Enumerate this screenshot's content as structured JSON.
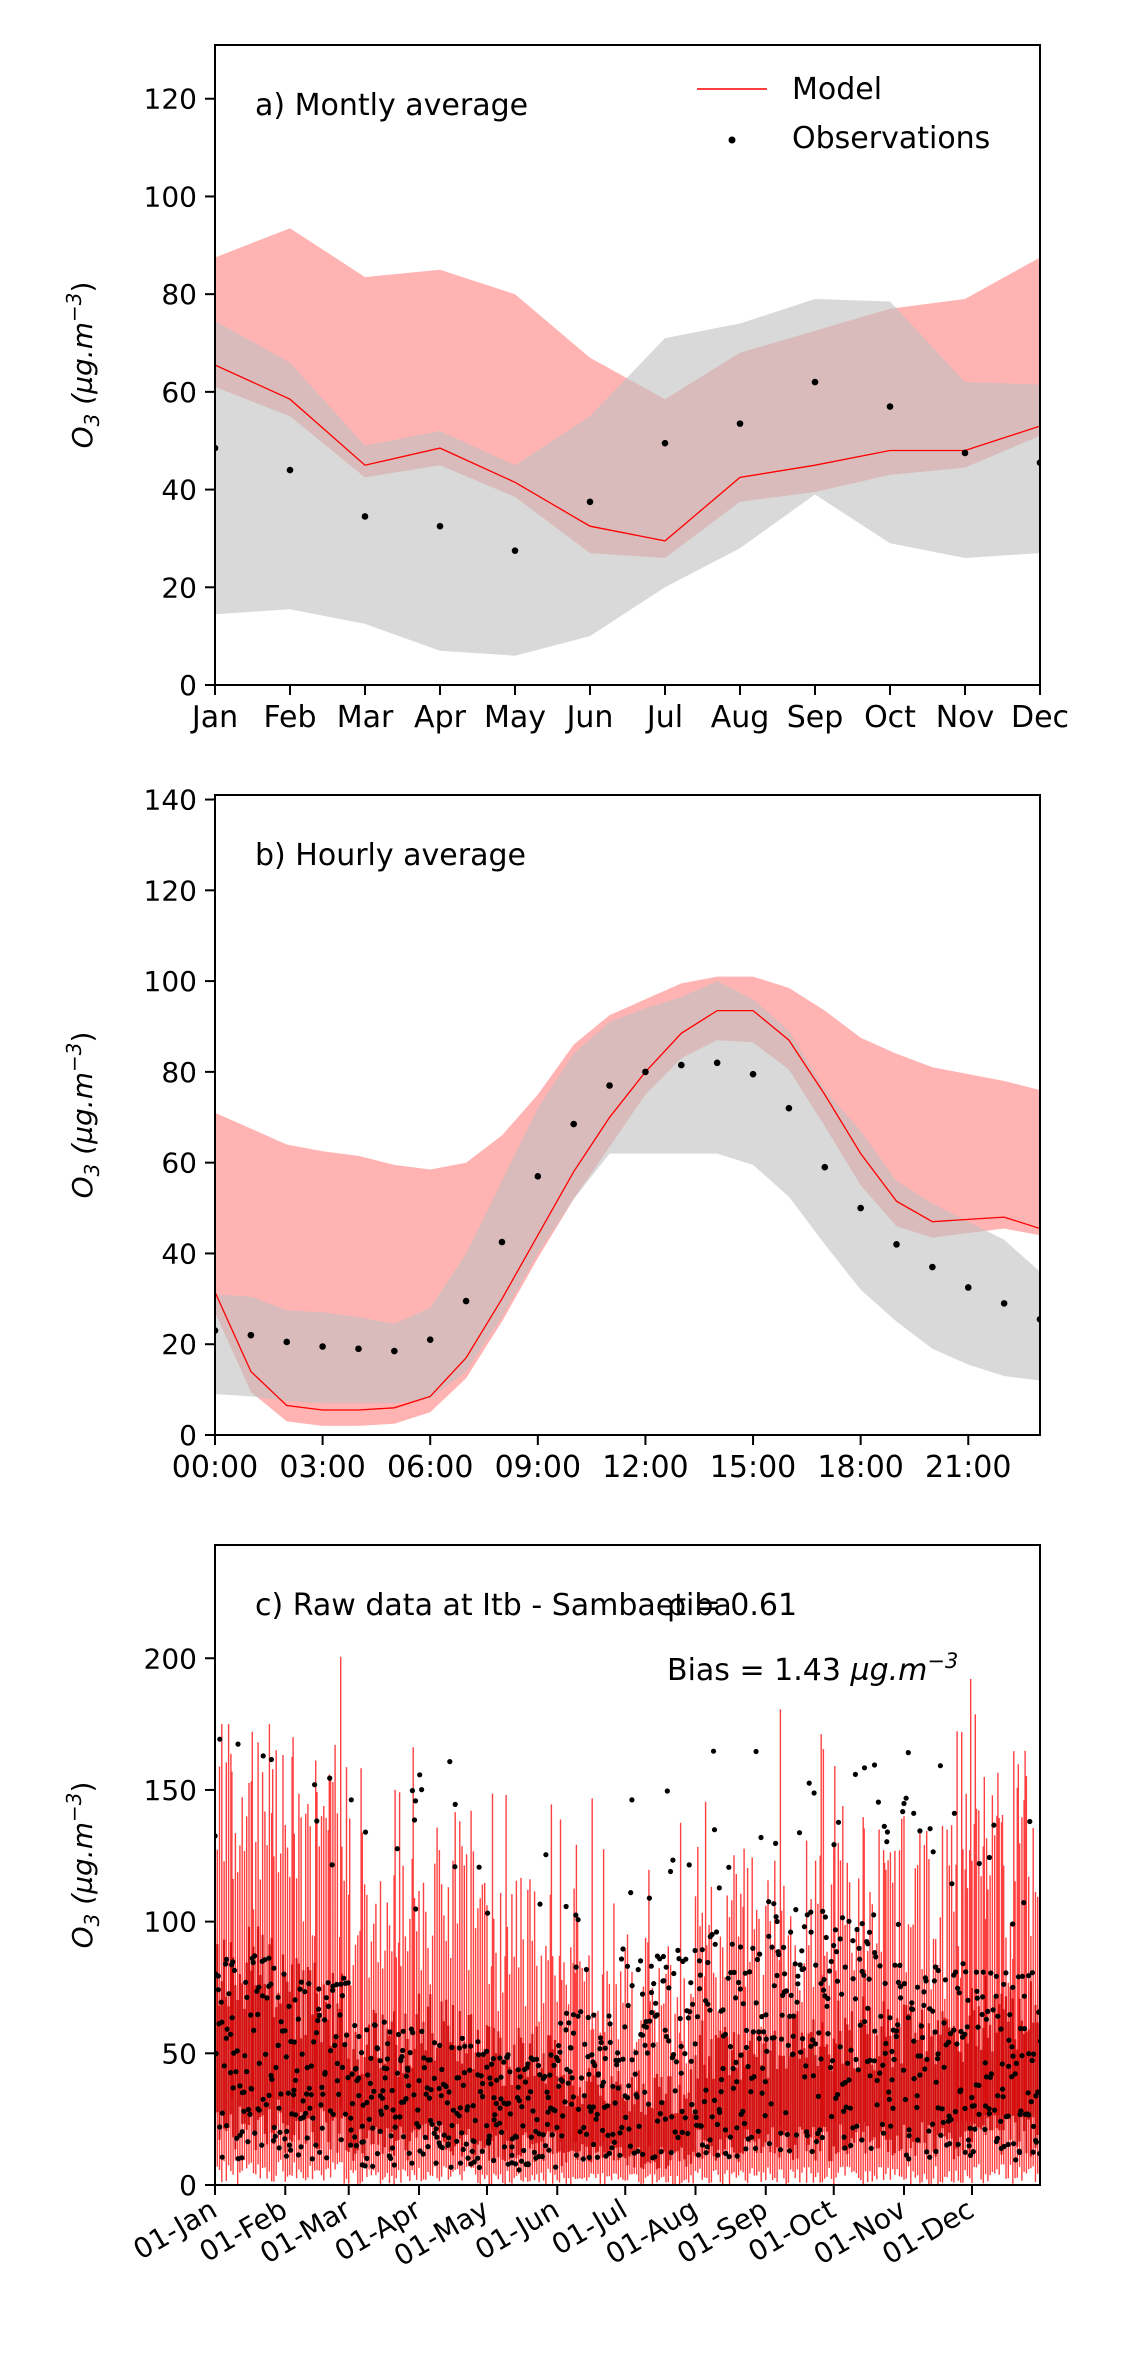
{
  "chart_data": [
    {
      "type": "line",
      "title": "a) Montly average",
      "ylabel_base": "O",
      "ylabel_sub": "3",
      "ylabel_unit": " (µg.m",
      "ylabel_sup": "−3",
      "ylabel_close": ")",
      "xlim": [
        0,
        11
      ],
      "ylim": [
        0,
        131
      ],
      "yticks": [
        0,
        20,
        40,
        60,
        80,
        100,
        120
      ],
      "xticks": [
        0,
        1,
        2,
        3,
        4,
        5,
        6,
        7,
        8,
        9,
        10,
        11
      ],
      "xtick_labels": [
        "Jan",
        "Feb",
        "Mar",
        "Apr",
        "May",
        "Jun",
        "Jul",
        "Aug",
        "Sep",
        "Oct",
        "Nov",
        "Dec"
      ],
      "legend": [
        "Model",
        "Observations"
      ],
      "legend_position": "top-right",
      "grid": false,
      "model_color": "#ff0000",
      "model_band_color": "#ff9999",
      "obs_band_color": "#bfbfbf",
      "x": [
        0,
        1,
        2,
        3,
        4,
        5,
        6,
        7,
        8,
        9,
        10,
        11
      ],
      "model_mean": [
        65.5,
        58.5,
        45.0,
        48.5,
        41.5,
        32.5,
        29.5,
        42.5,
        45.0,
        48.0,
        48.0,
        53.0
      ],
      "model_upper": [
        87.5,
        93.5,
        83.5,
        85.0,
        80.0,
        67.0,
        58.5,
        68.0,
        72.5,
        77.0,
        79.0,
        87.5
      ],
      "model_lower": [
        61.0,
        55.0,
        42.5,
        45.0,
        38.5,
        27.0,
        26.0,
        37.5,
        39.5,
        43.0,
        44.5,
        51.0
      ],
      "obs_mean": [
        48.5,
        44.0,
        34.5,
        32.5,
        27.5,
        37.5,
        49.5,
        53.5,
        62.0,
        57.0,
        47.5,
        45.5
      ],
      "obs_upper": [
        74.5,
        66.0,
        49.0,
        52.0,
        45.0,
        55.0,
        71.0,
        74.0,
        79.0,
        78.5,
        62.0,
        61.5
      ],
      "obs_lower": [
        14.5,
        15.5,
        12.5,
        7.0,
        6.0,
        10.0,
        20.0,
        28.0,
        39.0,
        29.0,
        26.0,
        27.0
      ]
    },
    {
      "type": "line",
      "title": "b) Hourly average",
      "ylabel_base": "O",
      "ylabel_sub": "3",
      "ylabel_unit": " (µg.m",
      "ylabel_sup": "−3",
      "ylabel_close": ")",
      "xlim": [
        0,
        23
      ],
      "ylim": [
        0,
        141
      ],
      "yticks": [
        0,
        20,
        40,
        60,
        80,
        100,
        120,
        140
      ],
      "xticks": [
        0,
        3,
        6,
        9,
        12,
        15,
        18,
        21
      ],
      "xtick_labels": [
        "00:00",
        "03:00",
        "06:00",
        "09:00",
        "12:00",
        "15:00",
        "18:00",
        "21:00"
      ],
      "grid": false,
      "x": [
        0,
        1,
        2,
        3,
        4,
        5,
        6,
        7,
        8,
        9,
        10,
        11,
        12,
        13,
        14,
        15,
        16,
        17,
        18,
        19,
        20,
        21,
        22,
        23
      ],
      "model_mean": [
        31.5,
        14.0,
        6.5,
        5.5,
        5.5,
        6.0,
        8.5,
        17.0,
        30.0,
        44.0,
        58.0,
        70.0,
        80.0,
        88.5,
        93.5,
        93.5,
        87.0,
        75.0,
        62.0,
        51.5,
        47.0,
        47.5,
        48.0,
        45.5
      ],
      "model_upper": [
        71.0,
        67.5,
        64.0,
        62.5,
        61.5,
        59.5,
        58.5,
        60.0,
        66.0,
        75.0,
        86.0,
        92.5,
        96.0,
        99.5,
        101.0,
        101.0,
        98.5,
        93.5,
        87.5,
        84.0,
        81.0,
        79.5,
        78.0,
        76.0
      ],
      "model_lower": [
        27.0,
        9.5,
        3.0,
        2.0,
        2.0,
        2.5,
        5.0,
        12.5,
        25.0,
        39.0,
        52.0,
        63.5,
        75.0,
        83.0,
        87.0,
        86.5,
        80.5,
        68.0,
        55.0,
        46.0,
        43.5,
        44.5,
        45.5,
        44.0
      ],
      "obs_mean": [
        23.0,
        22.0,
        20.5,
        19.5,
        19.0,
        18.5,
        21.0,
        29.5,
        42.5,
        57.0,
        68.5,
        77.0,
        80.0,
        81.5,
        82.0,
        79.5,
        72.0,
        59.0,
        50.0,
        42.0,
        37.0,
        32.5,
        29.0,
        25.5
      ],
      "obs_upper": [
        31.0,
        30.5,
        27.5,
        27.0,
        26.0,
        24.5,
        28.0,
        40.0,
        56.0,
        72.0,
        84.0,
        91.0,
        94.0,
        96.5,
        100.0,
        96.0,
        89.0,
        76.0,
        67.0,
        56.0,
        51.0,
        47.0,
        43.0,
        36.0
      ],
      "obs_lower": [
        9.0,
        8.5,
        7.5,
        7.0,
        7.0,
        7.0,
        8.0,
        14.0,
        26.0,
        40.0,
        52.0,
        62.0,
        62.0,
        62.0,
        62.0,
        59.5,
        52.5,
        42.0,
        32.0,
        25.0,
        19.0,
        15.5,
        13.0,
        12.0
      ]
    },
    {
      "type": "line",
      "title": "c) Raw data at Itb - Sambaetiba",
      "corr_label": "ρ = 0.61",
      "bias_label": "Bias = 1.43 ",
      "bias_unit": "µg.m",
      "bias_sup": "−3",
      "ylabel_base": "O",
      "ylabel_sub": "3",
      "ylabel_unit": " (µg.m",
      "ylabel_sup": "−3",
      "ylabel_close": ")",
      "xlim": [
        "2019-01-01",
        "2019-12-31"
      ],
      "ylim": [
        0,
        243
      ],
      "yticks": [
        0,
        50,
        100,
        150,
        200
      ],
      "xticks": [
        "2019-01-01",
        "2019-02-01",
        "2019-03-01",
        "2019-04-01",
        "2019-05-01",
        "2019-06-01",
        "2019-07-01",
        "2019-08-01",
        "2019-09-01",
        "2019-10-01",
        "2019-11-01",
        "2019-12-01"
      ],
      "xtick_labels": [
        "01-Jan",
        "01-Feb",
        "01-Mar",
        "01-Apr",
        "01-May",
        "01-Jun",
        "01-Jul",
        "01-Aug",
        "01-Sep",
        "01-Oct",
        "01-Nov",
        "01-Dec"
      ],
      "grid": false,
      "monthly_model_mean": [
        65.5,
        58.5,
        45.0,
        48.5,
        41.5,
        32.5,
        29.5,
        42.5,
        45.0,
        48.0,
        48.0,
        53.0
      ],
      "monthly_model_peak": [
        175,
        205,
        185,
        175,
        170,
        150,
        140,
        160,
        185,
        165,
        200,
        180
      ],
      "monthly_obs_mean": [
        48.5,
        44.0,
        34.5,
        32.5,
        27.5,
        37.5,
        49.5,
        53.5,
        62.0,
        57.0,
        47.5,
        45.5
      ],
      "monthly_obs_peak": [
        170,
        170,
        160,
        165,
        130,
        120,
        168,
        170,
        160,
        172,
        165,
        140
      ]
    }
  ]
}
